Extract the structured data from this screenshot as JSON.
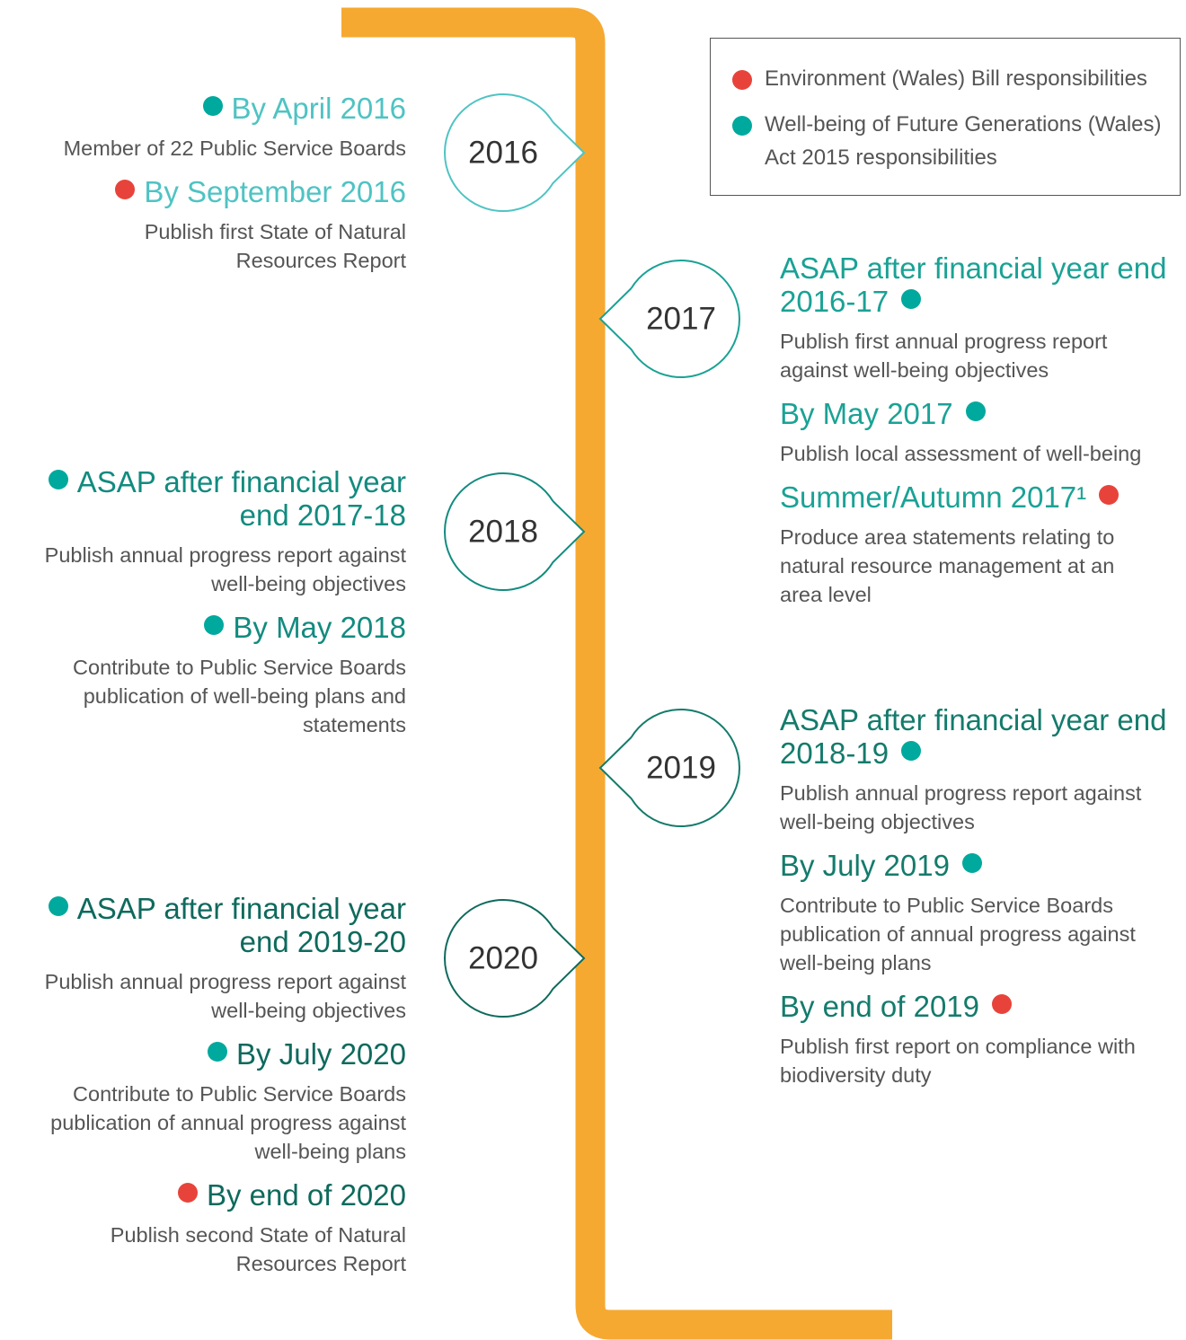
{
  "legend": [
    {
      "label": "Environment (Wales) Bill responsibilities",
      "color": "#e8433b"
    },
    {
      "label": "Well-being of Future Generations (Wales) Act 2015 responsibilities",
      "color": "#00a99d"
    }
  ],
  "timeline": [
    {
      "year": "2016",
      "side": "left",
      "color": "#4fc3c3",
      "entries": [
        {
          "heading": "By April 2016",
          "color": "#00a99d",
          "description": "Member of 22 Public Service Boards"
        },
        {
          "heading": "By September 2016",
          "color": "#e8433b",
          "description": "Publish first State of Natural Resources Report"
        }
      ]
    },
    {
      "year": "2017",
      "side": "right",
      "color": "#1aa295",
      "entries": [
        {
          "heading": "ASAP after financial year end 2016-17",
          "color": "#00a99d",
          "description": "Publish first annual progress report against well-being objectives"
        },
        {
          "heading": "By May 2017",
          "color": "#00a99d",
          "description": "Publish local assessment of well-being"
        },
        {
          "heading": "Summer/Autumn 2017¹",
          "color": "#e8433b",
          "description": "Produce area statements relating to natural resource management at an area level"
        }
      ]
    },
    {
      "year": "2018",
      "side": "left",
      "color": "#128b7f",
      "entries": [
        {
          "heading": "ASAP after financial year end 2017-18",
          "color": "#00a99d",
          "description": "Publish annual progress report against well-being objectives"
        },
        {
          "heading": "By May 2018",
          "color": "#00a99d",
          "description": "Contribute to Public Service Boards publication of well-being plans and statements"
        }
      ]
    },
    {
      "year": "2019",
      "side": "right",
      "color": "#147b6c",
      "entries": [
        {
          "heading": "ASAP after financial year end 2018-19",
          "color": "#00a99d",
          "description": "Publish annual progress report against well-being objectives"
        },
        {
          "heading": "By July 2019",
          "color": "#00a99d",
          "description": "Contribute to Public Service Boards publication of annual progress against well-being plans"
        },
        {
          "heading": "By end of 2019",
          "color": "#e8433b",
          "description": "Publish first report on compliance with biodiversity duty"
        }
      ]
    },
    {
      "year": "2020",
      "side": "left",
      "color": "#0e6a5d",
      "entries": [
        {
          "heading": "ASAP after financial year end 2019-20",
          "color": "#00a99d",
          "description": "Publish annual progress report against well-being objectives"
        },
        {
          "heading": "By July 2020",
          "color": "#00a99d",
          "description": "Contribute to Public Service Boards publication of annual progress against well-being plans"
        },
        {
          "heading": "By end of 2020",
          "color": "#e8433b",
          "description": "Publish second State of Natural Resources Report"
        }
      ]
    }
  ]
}
